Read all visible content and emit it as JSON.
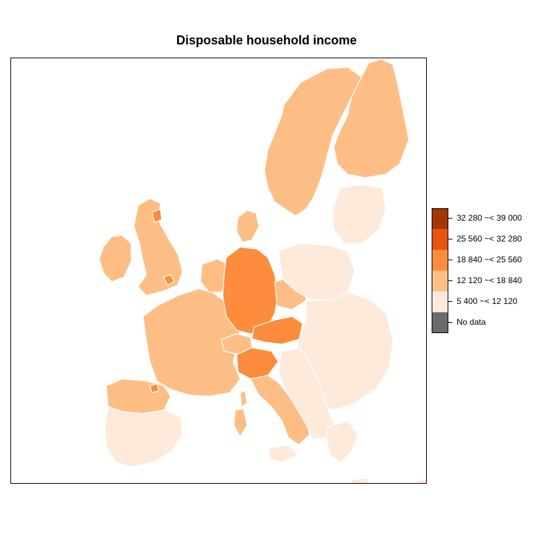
{
  "title": "Disposable household income",
  "map": {
    "region": "Europe (NUTS regions)",
    "background": "#ffffff",
    "border_color": "#ffffff"
  },
  "legend": {
    "items": [
      {
        "label": "32 280 ~< 39 000",
        "color": "#a63603"
      },
      {
        "label": "25 560 ~< 32 280",
        "color": "#e6550d"
      },
      {
        "label": "18 840 ~< 25 560",
        "color": "#fd8d3c"
      },
      {
        "label": "12 120 ~< 18 840",
        "color": "#fdbe85"
      },
      {
        "label": "5 400 ~< 12 120",
        "color": "#feeadb"
      },
      {
        "label": "No data",
        "color": "#6b6b6b"
      }
    ]
  }
}
